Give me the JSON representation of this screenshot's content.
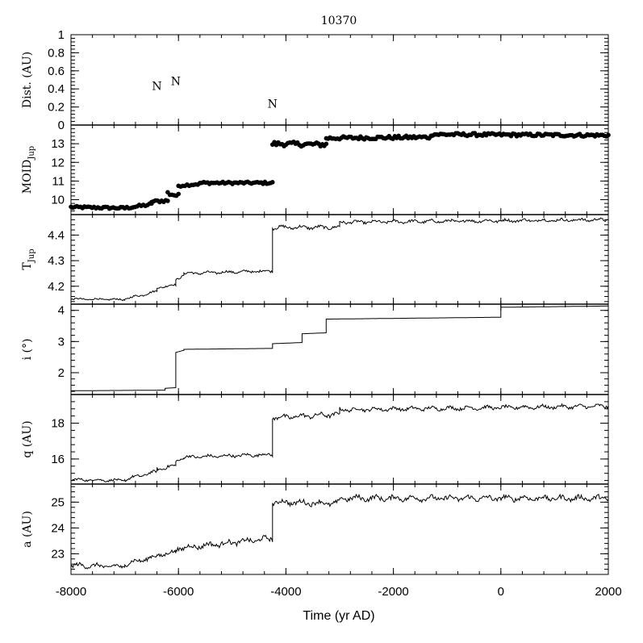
{
  "chart_data": {
    "type": "line",
    "title": "10370",
    "xlabel": "Time (yr AD)",
    "xlim": [
      -8000,
      2000
    ],
    "xticks": [
      -8000,
      -6000,
      -4000,
      -2000,
      0,
      2000
    ],
    "x_tick_labels": [
      "-8000",
      "-6000",
      "-4000",
      "-2000",
      "0",
      "2000"
    ],
    "panels": [
      {
        "key": "dist",
        "type": "scatter",
        "ylabel": "Dist. (AU)",
        "ylim": [
          0,
          1
        ],
        "yticks": [
          0,
          0.2,
          0.4,
          0.6,
          0.8,
          1
        ],
        "y_tick_labels": [
          "0",
          "0.2",
          "0.4",
          "0.6",
          "0.8",
          "1"
        ],
        "annotations": [
          {
            "text": "N",
            "x": -6400,
            "y": 0.39
          },
          {
            "text": "N",
            "x": -6050,
            "y": 0.44
          },
          {
            "text": "N",
            "x": -4250,
            "y": 0.19
          }
        ]
      },
      {
        "key": "moid",
        "type": "scatter",
        "ylabel": "MOID",
        "ylabel_sub": "Jup",
        "ylim": [
          9.2,
          14.0
        ],
        "yticks": [
          10,
          11,
          12,
          13
        ],
        "y_tick_labels": [
          "10",
          "11",
          "12",
          "13"
        ],
        "segments": [
          {
            "x0": -8000,
            "x1": -7000,
            "y0": 9.6,
            "y1": 9.55,
            "noise": 0.06
          },
          {
            "x0": -7000,
            "x1": -6500,
            "y0": 9.55,
            "y1": 9.75,
            "noise": 0.07
          },
          {
            "x0": -6500,
            "x1": -6200,
            "y0": 9.9,
            "y1": 9.95,
            "noise": 0.07
          },
          {
            "x0": -6200,
            "x1": -6000,
            "y0": 10.35,
            "y1": 10.2,
            "noise": 0.12
          },
          {
            "x0": -6000,
            "x1": -5600,
            "y0": 10.75,
            "y1": 10.85,
            "noise": 0.06
          },
          {
            "x0": -5600,
            "x1": -4250,
            "y0": 10.9,
            "y1": 10.9,
            "noise": 0.06
          },
          {
            "x0": -4250,
            "x1": -3250,
            "y0": 13.0,
            "y1": 12.95,
            "noise": 0.12
          },
          {
            "x0": -3250,
            "x1": -1300,
            "y0": 13.3,
            "y1": 13.35,
            "noise": 0.09
          },
          {
            "x0": -1300,
            "x1": 2000,
            "y0": 13.5,
            "y1": 13.45,
            "noise": 0.08
          }
        ]
      },
      {
        "key": "tjup",
        "type": "line",
        "ylabel": "T",
        "ylabel_sub": "Jup",
        "ylim": [
          4.13,
          4.48
        ],
        "yticks": [
          4.2,
          4.3,
          4.4
        ],
        "y_tick_labels": [
          "4.2",
          "4.3",
          "4.4"
        ],
        "segments": [
          {
            "x0": -8000,
            "x1": -7000,
            "y0": 4.15,
            "y1": 4.148,
            "noise": 0.004
          },
          {
            "x0": -7000,
            "x1": -6400,
            "y0": 4.15,
            "y1": 4.18,
            "noise": 0.005
          },
          {
            "x0": -6400,
            "x1": -6050,
            "y0": 4.195,
            "y1": 4.205,
            "noise": 0.005
          },
          {
            "x0": -6050,
            "x1": -5900,
            "y0": 4.225,
            "y1": 4.245,
            "noise": 0.005
          },
          {
            "x0": -5900,
            "x1": -4250,
            "y0": 4.25,
            "y1": 4.26,
            "noise": 0.006
          },
          {
            "x0": -4250,
            "x1": -3000,
            "y0": 4.43,
            "y1": 4.43,
            "noise": 0.008
          },
          {
            "x0": -3000,
            "x1": 2000,
            "y0": 4.45,
            "y1": 4.46,
            "noise": 0.007
          }
        ]
      },
      {
        "key": "i",
        "type": "line",
        "ylabel": "i (°)",
        "ylim": [
          1.3,
          4.2
        ],
        "yticks": [
          2,
          3,
          4
        ],
        "y_tick_labels": [
          "2",
          "3",
          "4"
        ],
        "segments": [
          {
            "x0": -8000,
            "x1": -6250,
            "y0": 1.42,
            "y1": 1.44,
            "noise": 0.0
          },
          {
            "x0": -6250,
            "x1": -6050,
            "y0": 1.5,
            "y1": 1.52,
            "noise": 0.0
          },
          {
            "x0": -6050,
            "x1": -5900,
            "y0": 2.65,
            "y1": 2.72,
            "noise": 0.0
          },
          {
            "x0": -5900,
            "x1": -4250,
            "y0": 2.75,
            "y1": 2.78,
            "noise": 0.0
          },
          {
            "x0": -4250,
            "x1": -3700,
            "y0": 2.93,
            "y1": 2.97,
            "noise": 0.0
          },
          {
            "x0": -3700,
            "x1": -3250,
            "y0": 3.25,
            "y1": 3.28,
            "noise": 0.0
          },
          {
            "x0": -3250,
            "x1": 0,
            "y0": 3.72,
            "y1": 3.78,
            "noise": 0.0
          },
          {
            "x0": 0,
            "x1": 2000,
            "y0": 4.1,
            "y1": 4.14,
            "noise": 0.0
          }
        ]
      },
      {
        "key": "q",
        "type": "line",
        "ylabel": "q (AU)",
        "ylim": [
          14.6,
          19.6
        ],
        "yticks": [
          16,
          18
        ],
        "y_tick_labels": [
          "16",
          "18"
        ],
        "segments": [
          {
            "x0": -8000,
            "x1": -7000,
            "y0": 14.85,
            "y1": 14.8,
            "noise": 0.08
          },
          {
            "x0": -7000,
            "x1": -6400,
            "y0": 14.85,
            "y1": 15.3,
            "noise": 0.1
          },
          {
            "x0": -6400,
            "x1": -6050,
            "y0": 15.45,
            "y1": 15.6,
            "noise": 0.12
          },
          {
            "x0": -6050,
            "x1": -5900,
            "y0": 15.9,
            "y1": 16.05,
            "noise": 0.08
          },
          {
            "x0": -5900,
            "x1": -4250,
            "y0": 16.1,
            "y1": 16.25,
            "noise": 0.1
          },
          {
            "x0": -4250,
            "x1": -3000,
            "y0": 18.3,
            "y1": 18.5,
            "noise": 0.15
          },
          {
            "x0": -3000,
            "x1": 2000,
            "y0": 18.75,
            "y1": 18.95,
            "noise": 0.12
          }
        ]
      },
      {
        "key": "a",
        "type": "line",
        "ylabel": "a (AU)",
        "ylim": [
          22.2,
          25.7
        ],
        "yticks": [
          23,
          24,
          25
        ],
        "y_tick_labels": [
          "23",
          "24",
          "25"
        ],
        "segments": [
          {
            "x0": -8000,
            "x1": -7000,
            "y0": 22.55,
            "y1": 22.5,
            "noise": 0.1
          },
          {
            "x0": -7000,
            "x1": -6400,
            "y0": 22.6,
            "y1": 22.9,
            "noise": 0.1
          },
          {
            "x0": -6400,
            "x1": -6050,
            "y0": 22.95,
            "y1": 23.05,
            "noise": 0.1
          },
          {
            "x0": -6050,
            "x1": -4250,
            "y0": 23.2,
            "y1": 23.6,
            "noise": 0.12
          },
          {
            "x0": -4250,
            "x1": -3000,
            "y0": 25.0,
            "y1": 24.95,
            "noise": 0.12
          },
          {
            "x0": -3000,
            "x1": 2000,
            "y0": 25.15,
            "y1": 25.15,
            "noise": 0.12
          }
        ]
      }
    ],
    "grid": false,
    "legend": "none"
  }
}
